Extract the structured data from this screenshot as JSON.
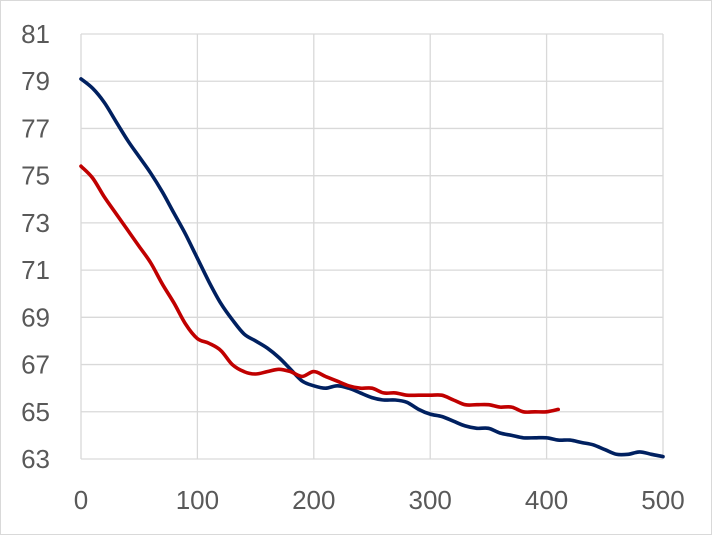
{
  "chart_data": {
    "type": "line",
    "title": "",
    "xlabel": "",
    "ylabel": "",
    "xlim": [
      0,
      500
    ],
    "ylim": [
      63,
      81
    ],
    "x_ticks": [
      0,
      100,
      200,
      300,
      400,
      500
    ],
    "y_ticks": [
      63,
      65,
      67,
      69,
      71,
      73,
      75,
      77,
      79,
      81
    ],
    "grid": true,
    "legend": "none",
    "series": [
      {
        "color": "#002060",
        "points": [
          [
            0,
            79.1
          ],
          [
            10,
            78.7
          ],
          [
            20,
            78.1
          ],
          [
            30,
            77.3
          ],
          [
            40,
            76.5
          ],
          [
            50,
            75.8
          ],
          [
            60,
            75.1
          ],
          [
            70,
            74.3
          ],
          [
            80,
            73.4
          ],
          [
            90,
            72.5
          ],
          [
            100,
            71.5
          ],
          [
            110,
            70.5
          ],
          [
            120,
            69.6
          ],
          [
            130,
            68.9
          ],
          [
            140,
            68.3
          ],
          [
            150,
            68.0
          ],
          [
            160,
            67.7
          ],
          [
            170,
            67.3
          ],
          [
            180,
            66.8
          ],
          [
            190,
            66.3
          ],
          [
            200,
            66.1
          ],
          [
            210,
            66.0
          ],
          [
            220,
            66.1
          ],
          [
            230,
            66.0
          ],
          [
            240,
            65.8
          ],
          [
            250,
            65.6
          ],
          [
            260,
            65.5
          ],
          [
            270,
            65.5
          ],
          [
            280,
            65.4
          ],
          [
            290,
            65.1
          ],
          [
            300,
            64.9
          ],
          [
            310,
            64.8
          ],
          [
            320,
            64.6
          ],
          [
            330,
            64.4
          ],
          [
            340,
            64.3
          ],
          [
            350,
            64.3
          ],
          [
            360,
            64.1
          ],
          [
            370,
            64.0
          ],
          [
            380,
            63.9
          ],
          [
            390,
            63.9
          ],
          [
            400,
            63.9
          ],
          [
            410,
            63.8
          ],
          [
            420,
            63.8
          ],
          [
            430,
            63.7
          ],
          [
            440,
            63.6
          ],
          [
            450,
            63.4
          ],
          [
            460,
            63.2
          ],
          [
            470,
            63.2
          ],
          [
            480,
            63.3
          ],
          [
            490,
            63.2
          ],
          [
            500,
            63.1
          ]
        ]
      },
      {
        "color": "#c00000",
        "points": [
          [
            0,
            75.4
          ],
          [
            10,
            74.9
          ],
          [
            20,
            74.1
          ],
          [
            30,
            73.4
          ],
          [
            40,
            72.7
          ],
          [
            50,
            72.0
          ],
          [
            60,
            71.3
          ],
          [
            70,
            70.4
          ],
          [
            80,
            69.6
          ],
          [
            90,
            68.7
          ],
          [
            100,
            68.1
          ],
          [
            110,
            67.9
          ],
          [
            120,
            67.6
          ],
          [
            130,
            67.0
          ],
          [
            140,
            66.7
          ],
          [
            150,
            66.6
          ],
          [
            160,
            66.7
          ],
          [
            170,
            66.8
          ],
          [
            180,
            66.7
          ],
          [
            190,
            66.5
          ],
          [
            200,
            66.7
          ],
          [
            210,
            66.5
          ],
          [
            220,
            66.3
          ],
          [
            230,
            66.1
          ],
          [
            240,
            66.0
          ],
          [
            250,
            66.0
          ],
          [
            260,
            65.8
          ],
          [
            270,
            65.8
          ],
          [
            280,
            65.7
          ],
          [
            290,
            65.7
          ],
          [
            300,
            65.7
          ],
          [
            310,
            65.7
          ],
          [
            320,
            65.5
          ],
          [
            330,
            65.3
          ],
          [
            340,
            65.3
          ],
          [
            350,
            65.3
          ],
          [
            360,
            65.2
          ],
          [
            370,
            65.2
          ],
          [
            380,
            65.0
          ],
          [
            390,
            65.0
          ],
          [
            400,
            65.0
          ],
          [
            410,
            65.1
          ]
        ]
      }
    ]
  }
}
